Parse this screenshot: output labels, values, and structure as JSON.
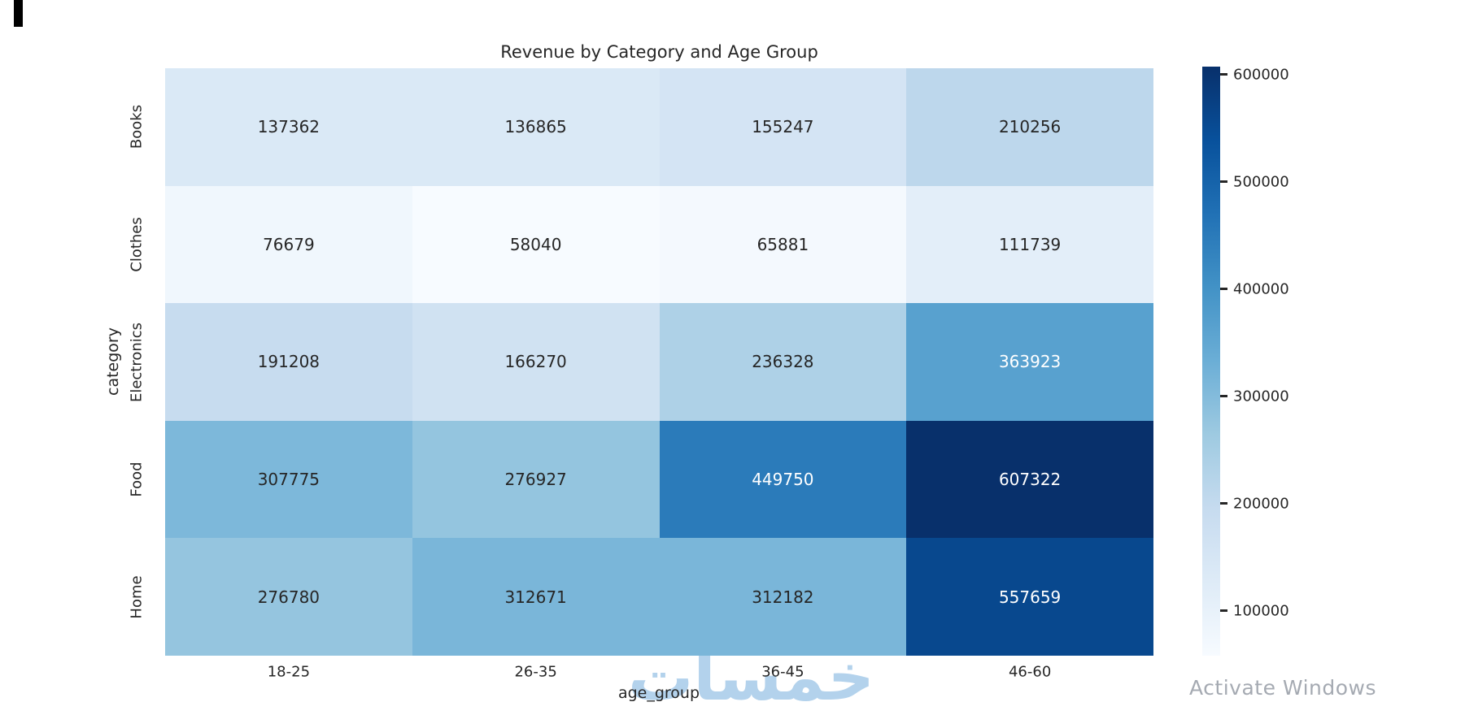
{
  "chart_data": {
    "type": "heatmap",
    "title": "Revenue by Category and Age Group",
    "xlabel": "age_group",
    "ylabel": "category",
    "x_categories": [
      "18-25",
      "26-35",
      "36-45",
      "46-60"
    ],
    "y_categories": [
      "Books",
      "Clothes",
      "Electronics",
      "Food",
      "Home"
    ],
    "values": [
      [
        137362,
        136865,
        155247,
        210256
      ],
      [
        76679,
        58040,
        65881,
        111739
      ],
      [
        191208,
        166270,
        236328,
        363923
      ],
      [
        307775,
        276927,
        449750,
        607322
      ],
      [
        276780,
        312671,
        312182,
        557659
      ]
    ],
    "vmin": 58040,
    "vmax": 607322,
    "colormap": "Blues",
    "colormap_stops": [
      "#f7fbff",
      "#deebf7",
      "#c6dbef",
      "#9ecae1",
      "#6baed6",
      "#4292c6",
      "#2171b5",
      "#08519c",
      "#08306b"
    ],
    "colorbar_ticks": [
      100000,
      200000,
      300000,
      400000,
      500000,
      600000
    ],
    "annot_color_dark": "#262626",
    "annot_color_light": "#ffffff",
    "legend_position": "right-colorbar",
    "grid": "off"
  },
  "watermark": {
    "brand_text": "خمسات",
    "color": "#b3d2ec"
  },
  "os_watermark": {
    "line1": "Activate Windows",
    "color": "#a5aab2"
  }
}
